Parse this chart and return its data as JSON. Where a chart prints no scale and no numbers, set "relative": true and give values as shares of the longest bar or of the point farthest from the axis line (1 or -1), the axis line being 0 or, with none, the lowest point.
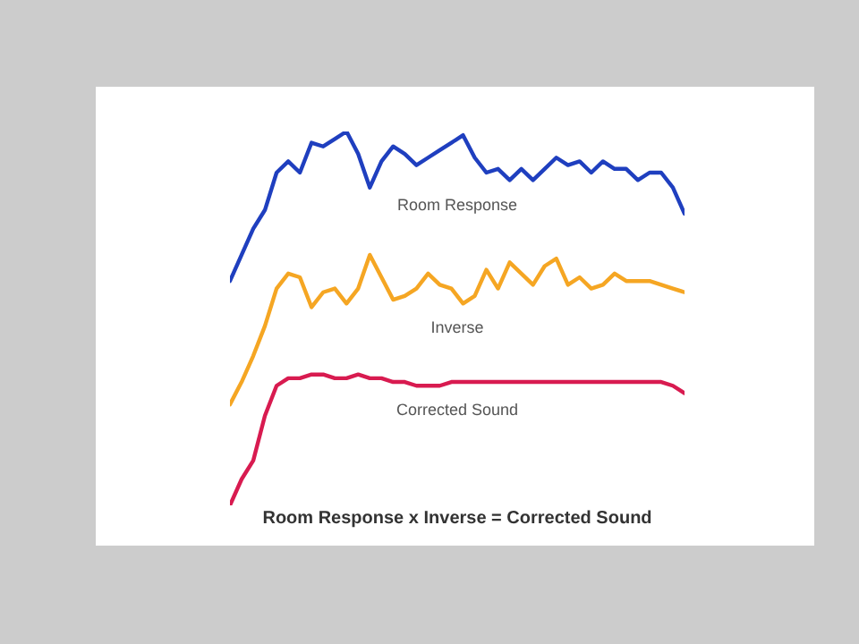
{
  "chart_data": {
    "type": "line",
    "title": "Room Response x Inverse = Corrected Sound",
    "relative": true,
    "grid": false,
    "categories": [
      null,
      null,
      null,
      null,
      null,
      null,
      null,
      null,
      null,
      null,
      null,
      null,
      null,
      null,
      null,
      null,
      null,
      null,
      null,
      null,
      null,
      null,
      null,
      null,
      null,
      null,
      null,
      null,
      null,
      null,
      null,
      null,
      null,
      null,
      null,
      null,
      null,
      null,
      null,
      null
    ],
    "series": [
      {
        "name": "Room Response",
        "color": "#1f3fbf",
        "values": [
          0.6,
          0.67,
          0.74,
          0.79,
          0.89,
          0.92,
          0.89,
          0.97,
          0.96,
          0.98,
          1.0,
          0.94,
          0.85,
          0.92,
          0.96,
          0.94,
          0.91,
          0.93,
          0.95,
          0.97,
          0.99,
          0.93,
          0.89,
          0.9,
          0.87,
          0.9,
          0.87,
          0.9,
          0.93,
          0.91,
          0.92,
          0.89,
          0.92,
          0.9,
          0.9,
          0.87,
          0.89,
          0.89,
          0.85,
          0.78
        ]
      },
      {
        "name": "Inverse",
        "color": "#f5a623",
        "values": [
          0.27,
          0.33,
          0.4,
          0.48,
          0.58,
          0.62,
          0.61,
          0.53,
          0.57,
          0.58,
          0.54,
          0.58,
          0.67,
          0.61,
          0.55,
          0.56,
          0.58,
          0.62,
          0.59,
          0.58,
          0.54,
          0.56,
          0.63,
          0.58,
          0.65,
          0.62,
          0.59,
          0.64,
          0.66,
          0.59,
          0.61,
          0.58,
          0.59,
          0.62,
          0.6,
          0.6,
          0.6,
          0.59,
          0.58,
          0.57
        ]
      },
      {
        "name": "Corrected Sound",
        "color": "#d81b50",
        "values": [
          0.0,
          0.07,
          0.12,
          0.24,
          0.32,
          0.34,
          0.34,
          0.35,
          0.35,
          0.34,
          0.34,
          0.35,
          0.34,
          0.34,
          0.33,
          0.33,
          0.32,
          0.32,
          0.32,
          0.33,
          0.33,
          0.33,
          0.33,
          0.33,
          0.33,
          0.33,
          0.33,
          0.33,
          0.33,
          0.33,
          0.33,
          0.33,
          0.33,
          0.33,
          0.33,
          0.33,
          0.33,
          0.33,
          0.32,
          0.3
        ]
      }
    ]
  }
}
